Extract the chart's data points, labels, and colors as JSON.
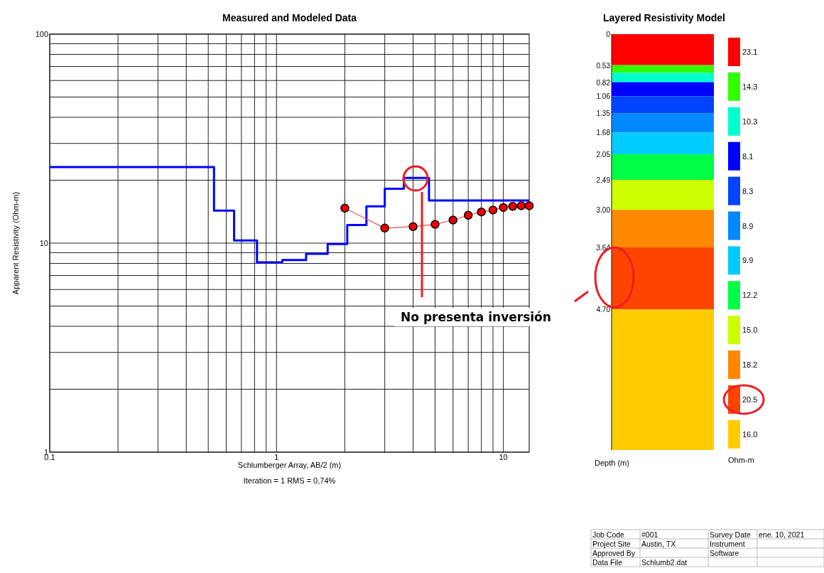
{
  "chart_data": [
    {
      "type": "line",
      "title": "Measured and Modeled Data",
      "xlabel": "Schlumberger Array, AB/2 (m)",
      "ylabel": "Apparent Resistivity (Ohm-m)",
      "log": "xy",
      "grid": true,
      "xlim": [
        0.1,
        13
      ],
      "ylim": [
        1,
        100
      ],
      "xticks": [
        0.1,
        {
          "value": 0.2,
          "label": null
        },
        {
          "value": 0.3,
          "label": null
        },
        {
          "value": 0.4,
          "label": null
        },
        {
          "value": 0.5,
          "label": null
        },
        {
          "value": 0.6,
          "label": null
        },
        {
          "value": 0.7,
          "label": null
        },
        {
          "value": 0.8,
          "label": null
        },
        {
          "value": 0.9,
          "label": null
        },
        1,
        {
          "value": 2,
          "label": null
        },
        {
          "value": 3,
          "label": null
        },
        {
          "value": 4,
          "label": null
        },
        {
          "value": 5,
          "label": null
        },
        {
          "value": 6,
          "label": null
        },
        {
          "value": 7,
          "label": null
        },
        {
          "value": 8,
          "label": null
        },
        {
          "value": 9,
          "label": null
        },
        10
      ],
      "yticks": [
        1,
        {
          "value": 2,
          "label": null
        },
        {
          "value": 3,
          "label": null
        },
        {
          "value": 4,
          "label": null
        },
        {
          "value": 5,
          "label": null
        },
        {
          "value": 6,
          "label": null
        },
        {
          "value": 7,
          "label": null
        },
        {
          "value": 8,
          "label": null
        },
        {
          "value": 9,
          "label": null
        },
        10,
        {
          "value": 20,
          "label": null
        },
        {
          "value": 30,
          "label": null
        },
        {
          "value": 40,
          "label": null
        },
        {
          "value": 50,
          "label": null
        },
        {
          "value": 60,
          "label": null
        },
        {
          "value": 70,
          "label": null
        },
        {
          "value": 80,
          "label": null
        },
        {
          "value": 90,
          "label": null
        },
        100
      ],
      "series": [
        {
          "type": "step",
          "color": "#0000ff",
          "x": [
            0.1,
            0.53,
            0.65,
            0.82,
            1.06,
            1.35,
            1.68,
            2.05,
            2.49,
            3.0,
            3.64,
            4.7,
            13
          ],
          "values": [
            23.1,
            14.3,
            10.3,
            8.1,
            8.3,
            8.9,
            9.9,
            12.2,
            15.0,
            18.2,
            20.5,
            16.0,
            16.0
          ]
        },
        {
          "type": "line",
          "color": "#e85050",
          "marker": "circle",
          "x": [
            2,
            3,
            4,
            5,
            6,
            7,
            8,
            9,
            10,
            11,
            12,
            13
          ],
          "values": [
            14.7,
            11.8,
            12.0,
            12.3,
            12.9,
            13.6,
            14.1,
            14.4,
            14.8,
            15.0,
            15.1,
            15.1
          ]
        }
      ],
      "annotations": [
        "Iteration = 1   RMS = 0,74%",
        "No presenta inversión"
      ]
    },
    {
      "type": "bar",
      "stacked": true,
      "title": "Layered Resistivity Model",
      "ylabel": "Depth (m)",
      "legend": "right",
      "legend_title": "Ohm-m",
      "categories": [
        null
      ],
      "ylim": [
        7.1,
        0
      ],
      "yticks": [
        0,
        0.53,
        0.82,
        1.06,
        1.35,
        1.68,
        2.05,
        2.49,
        {
          "value": 3,
          "label": "3.00"
        },
        3.64,
        {
          "value": 4.7,
          "label": "4.70"
        }
      ],
      "series": [
        {
          "name": "23.1",
          "color": "#ff0000",
          "values": [
            0.53
          ]
        },
        {
          "name": "14.3",
          "color": "#33ff00",
          "values": [
            0.13
          ]
        },
        {
          "name": "10.3",
          "color": "#00ffcc",
          "values": [
            0.16
          ]
        },
        {
          "name": "8.1",
          "color": "#0000ff",
          "values": [
            0.24
          ]
        },
        {
          "name": "8.3",
          "color": "#0044ff",
          "values": [
            0.29
          ]
        },
        {
          "name": "8.9",
          "color": "#0088ff",
          "values": [
            0.33
          ]
        },
        {
          "name": "9.9",
          "color": "#00ccff",
          "values": [
            0.37
          ]
        },
        {
          "name": "12.2",
          "color": "#00ff44",
          "values": [
            0.44
          ]
        },
        {
          "name": "15.0",
          "color": "#ccff00",
          "values": [
            0.51
          ]
        },
        {
          "name": "18.2",
          "color": "#ff8800",
          "values": [
            0.64
          ]
        },
        {
          "name": "20.5",
          "color": "#ff4400",
          "values": [
            1.06
          ]
        },
        {
          "name": "16.0",
          "color": "#ffcc00",
          "values": [
            2.4
          ]
        }
      ]
    },
    {
      "type": "other",
      "annotations": [
        "Job Code",
        "#001",
        "Survey Date",
        "ene. 10, 2021",
        "Project Site",
        "Austin, TX",
        "Instrument",
        null,
        "Approved By",
        null,
        "Software",
        null,
        "Data File",
        "Schlumb2.dat",
        null,
        null
      ]
    }
  ]
}
